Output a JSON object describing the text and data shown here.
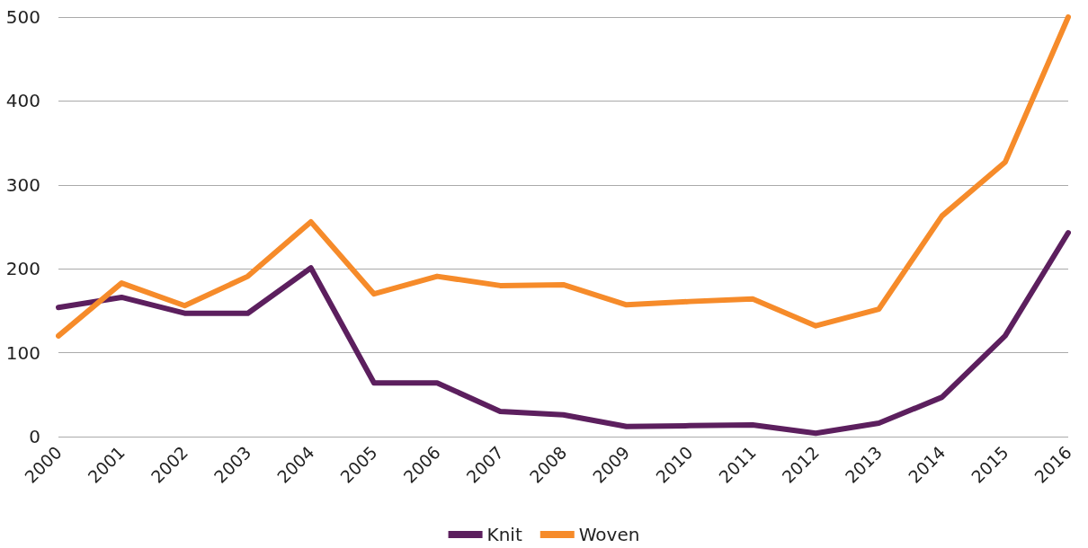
{
  "chart_data": {
    "type": "line",
    "categories": [
      "2000",
      "2001",
      "2002",
      "2003",
      "2004",
      "2005",
      "2006",
      "2007",
      "2008",
      "2009",
      "2010",
      "2011",
      "2012",
      "2013",
      "2014",
      "2015",
      "2016"
    ],
    "series": [
      {
        "name": "Knit",
        "color": "#5c1f5e",
        "values": [
          154,
          166,
          147,
          147,
          201,
          64,
          64,
          30,
          26,
          12,
          13,
          14,
          4,
          16,
          47,
          120,
          243
        ]
      },
      {
        "name": "Woven",
        "color": "#f68b2a",
        "values": [
          120,
          183,
          156,
          191,
          256,
          170,
          191,
          180,
          181,
          157,
          161,
          164,
          132,
          152,
          263,
          327,
          500
        ]
      }
    ],
    "ylim": [
      0,
      500
    ],
    "yticks": [
      0,
      100,
      200,
      300,
      400,
      500
    ],
    "grid": "y",
    "legend": "bottom",
    "marker": "none",
    "line_style": "solid"
  }
}
